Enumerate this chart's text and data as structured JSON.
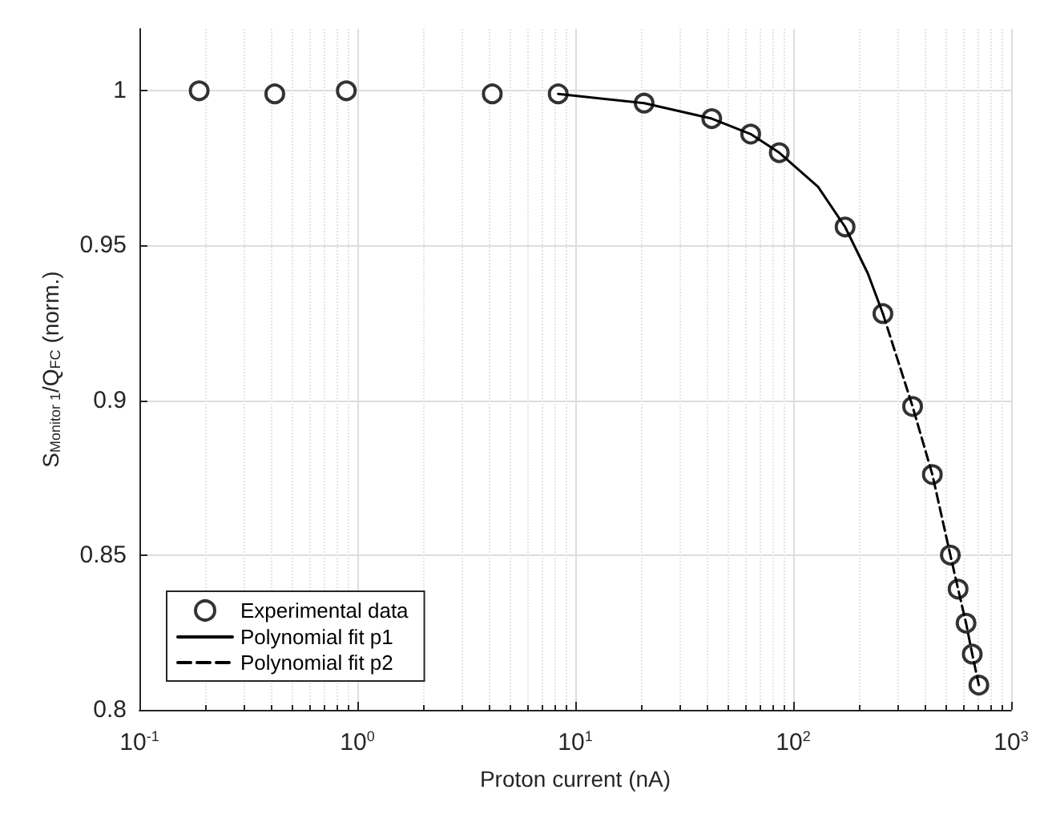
{
  "chart_data": {
    "type": "scatter",
    "xlabel": "Proton current (nA)",
    "ylabel": "S$_{Monitor 1}$/Q$_{FC}$ (norm.)",
    "log": "x",
    "grid": true,
    "legend": "bottom left",
    "marker": "circle",
    "xlim": [
      0.1,
      1000
    ],
    "xticks": [
      {
        "value": 0.1,
        "label": "10$^{-1}$"
      },
      {
        "value": 1,
        "label": "10$^{0}$"
      },
      {
        "value": 10,
        "label": "10$^{1}$"
      },
      {
        "value": 100,
        "label": "10$^{2}$"
      },
      {
        "value": 1000,
        "label": "10$^{3}$"
      }
    ],
    "ylim": [
      0.8,
      1.02
    ],
    "yticks": [
      0.8,
      0.85,
      0.9,
      0.95,
      1
    ],
    "series": [
      {
        "name": "Experimental data",
        "color": "#000000",
        "x": [
          0.188,
          0.418,
          0.89,
          4.16,
          8.35,
          20.7,
          42.3,
          63.8,
          86.3,
          173,
          258,
          353,
          435,
          526,
          571,
          621,
          663,
          711
        ],
        "values": [
          1.0,
          0.999,
          1.0,
          0.999,
          0.999,
          0.996,
          0.991,
          0.986,
          0.98,
          0.956,
          0.928,
          0.898,
          0.876,
          0.85,
          0.839,
          0.828,
          0.818,
          0.808
        ]
      },
      {
        "name": "Polynomial fit p1",
        "type": "line",
        "marker": "none",
        "line_style": "solid",
        "color": "#000000",
        "x": [
          8.35,
          20.7,
          42.3,
          63.8,
          86.3,
          130,
          173,
          220,
          258
        ],
        "values": [
          0.999,
          0.996,
          0.991,
          0.986,
          0.98,
          0.969,
          0.956,
          0.941,
          0.928
        ]
      },
      {
        "name": "Polynomial fit p2",
        "type": "line",
        "marker": "none",
        "line_style": "dashed",
        "color": "#000000",
        "x": [
          258,
          353,
          435,
          526,
          571,
          621,
          663,
          711
        ],
        "values": [
          0.928,
          0.898,
          0.876,
          0.85,
          0.839,
          0.828,
          0.818,
          0.808
        ]
      }
    ]
  }
}
